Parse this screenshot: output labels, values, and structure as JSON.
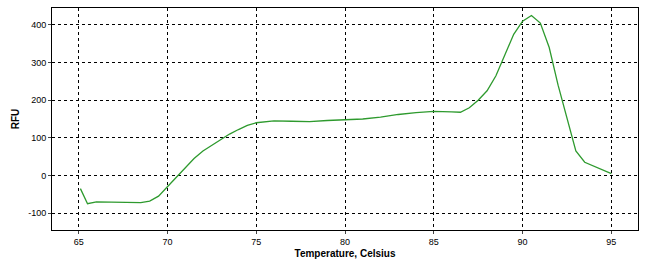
{
  "chart_data": {
    "type": "line",
    "x_label": "Temperature, Celsius",
    "y_label": "RFU",
    "x": [
      65.1,
      65.5,
      66,
      67,
      68,
      68.5,
      69,
      69.5,
      70,
      70.5,
      71,
      71.5,
      72,
      72.5,
      73,
      73.5,
      74,
      74.5,
      75,
      75.5,
      76,
      77,
      78,
      79,
      80,
      81,
      82,
      83,
      84,
      85,
      86,
      86.5,
      87,
      87.5,
      88,
      88.5,
      89,
      89.5,
      90,
      90.5,
      91,
      91.5,
      92,
      92.5,
      93,
      93.5,
      94,
      94.5,
      95
    ],
    "series": [
      {
        "name": "RFU",
        "color": "#2e9a2e",
        "values": [
          -35,
          -75,
          -70,
          -70,
          -70,
          -72,
          -68,
          -55,
          -30,
          -5,
          20,
          45,
          65,
          80,
          95,
          110,
          122,
          133,
          140,
          143,
          145,
          144,
          143,
          146,
          147,
          150,
          155,
          162,
          167,
          170,
          169,
          168,
          180,
          200,
          225,
          265,
          320,
          375,
          410,
          425,
          405,
          340,
          240,
          150,
          65,
          35,
          25,
          15,
          5
        ]
      }
    ],
    "xlim": [
      63.5,
      96.5
    ],
    "xticks": [
      65,
      70,
      75,
      80,
      85,
      90,
      95
    ],
    "ylim": [
      -145,
      445
    ],
    "yticks": [
      -100,
      0,
      100,
      200,
      300,
      400
    ],
    "grid": true
  }
}
